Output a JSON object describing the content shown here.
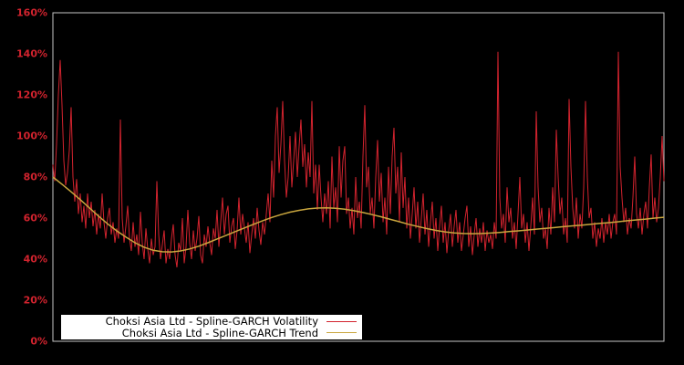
{
  "chart_data": {
    "type": "line",
    "background_color": "#000000",
    "border_color": "#c6c6c6",
    "tick_label_color": "#d2232e",
    "ylim": [
      0,
      160
    ],
    "grid": false,
    "x_axis_labels_visible": false,
    "legend_position": "bottom-left-inside",
    "legend_background": "#ffffff",
    "yticks": [
      {
        "value": 0,
        "label": "0%"
      },
      {
        "value": 20,
        "label": "20%"
      },
      {
        "value": 40,
        "label": "40%"
      },
      {
        "value": 60,
        "label": "60%"
      },
      {
        "value": 80,
        "label": "80%"
      },
      {
        "value": 100,
        "label": "100%"
      },
      {
        "value": 120,
        "label": "120%"
      },
      {
        "value": 140,
        "label": "140%"
      },
      {
        "value": 160,
        "label": "160%"
      }
    ],
    "series": [
      {
        "name": "Choksi Asia Ltd - Spline-GARCH Volatility",
        "color": "#d2232e",
        "unit": "%",
        "values": [
          86,
          78,
          96,
          120,
          137,
          115,
          88,
          76,
          82,
          93,
          114,
          80,
          68,
          79,
          62,
          72,
          58,
          66,
          55,
          72,
          60,
          68,
          56,
          64,
          52,
          62,
          55,
          72,
          58,
          50,
          60,
          65,
          52,
          58,
          48,
          55,
          50,
          108,
          60,
          48,
          56,
          66,
          50,
          44,
          58,
          46,
          52,
          42,
          63,
          48,
          40,
          55,
          45,
          38,
          50,
          42,
          46,
          78,
          52,
          40,
          47,
          54,
          38,
          45,
          40,
          50,
          57,
          42,
          36,
          48,
          44,
          60,
          38,
          46,
          64,
          48,
          40,
          54,
          44,
          50,
          61,
          42,
          38,
          52,
          46,
          56,
          48,
          42,
          55,
          50,
          64,
          46,
          58,
          70,
          52,
          62,
          66,
          48,
          56,
          60,
          45,
          54,
          70,
          52,
          62,
          55,
          48,
          58,
          43,
          52,
          60,
          50,
          65,
          54,
          47,
          58,
          52,
          62,
          72,
          58,
          88,
          70,
          100,
          114,
          82,
          96,
          117,
          88,
          70,
          80,
          100,
          75,
          88,
          102,
          80,
          95,
          108,
          85,
          96,
          75,
          92,
          80,
          117,
          72,
          86,
          64,
          86,
          70,
          58,
          72,
          62,
          78,
          55,
          90,
          65,
          75,
          58,
          95,
          70,
          88,
          95,
          62,
          70,
          55,
          65,
          52,
          80,
          60,
          68,
          55,
          90,
          115,
          75,
          85,
          62,
          70,
          55,
          80,
          98,
          68,
          82,
          58,
          70,
          52,
          85,
          62,
          90,
          104,
          72,
          85,
          58,
          92,
          65,
          80,
          55,
          70,
          50,
          62,
          75,
          55,
          68,
          48,
          60,
          72,
          52,
          64,
          46,
          58,
          68,
          50,
          60,
          44,
          56,
          66,
          48,
          58,
          43,
          54,
          62,
          46,
          56,
          64,
          48,
          58,
          44,
          52,
          60,
          66,
          46,
          56,
          42,
          52,
          60,
          46,
          55,
          48,
          58,
          44,
          54,
          48,
          52,
          45,
          58,
          50,
          141,
          70,
          55,
          62,
          48,
          75,
          58,
          65,
          50,
          58,
          45,
          62,
          80,
          55,
          62,
          48,
          58,
          44,
          56,
          70,
          52,
          112,
          75,
          58,
          65,
          50,
          55,
          45,
          65,
          52,
          75,
          58,
          103,
          80,
          62,
          70,
          52,
          60,
          48,
          118,
          85,
          65,
          55,
          70,
          50,
          62,
          55,
          75,
          117,
          80,
          60,
          65,
          50,
          58,
          46,
          55,
          50,
          60,
          48,
          58,
          52,
          62,
          50,
          58,
          62,
          52,
          141,
          85,
          70,
          58,
          65,
          52,
          60,
          55,
          70,
          90,
          62,
          55,
          65,
          52,
          62,
          68,
          55,
          75,
          91,
          60,
          70,
          58,
          65,
          80,
          100,
          78
        ]
      },
      {
        "name": "Choksi Asia Ltd - Spline-GARCH Trend",
        "color": "#c9a63e",
        "unit": "%",
        "values": [
          80.0,
          76.5,
          72.8,
          69.0,
          65.0,
          61.0,
          57.2,
          53.8,
          50.8,
          48.0,
          45.8,
          44.3,
          43.6,
          43.5,
          44.0,
          45.0,
          46.3,
          48.0,
          49.8,
          51.6,
          53.4,
          55.2,
          57.0,
          58.7,
          60.3,
          61.7,
          62.9,
          63.8,
          64.5,
          64.9,
          65.0,
          64.8,
          64.3,
          63.6,
          62.7,
          61.7,
          60.6,
          59.4,
          58.2,
          57.0,
          55.9,
          54.9,
          54.0,
          53.3,
          52.8,
          52.5,
          52.4,
          52.5,
          52.7,
          53.0,
          53.4,
          53.8,
          54.2,
          54.6,
          55.0,
          55.4,
          55.8,
          56.2,
          56.6,
          57.0,
          57.4,
          57.8,
          58.2,
          58.7,
          59.1,
          59.5,
          60.0,
          60.4
        ]
      }
    ]
  }
}
